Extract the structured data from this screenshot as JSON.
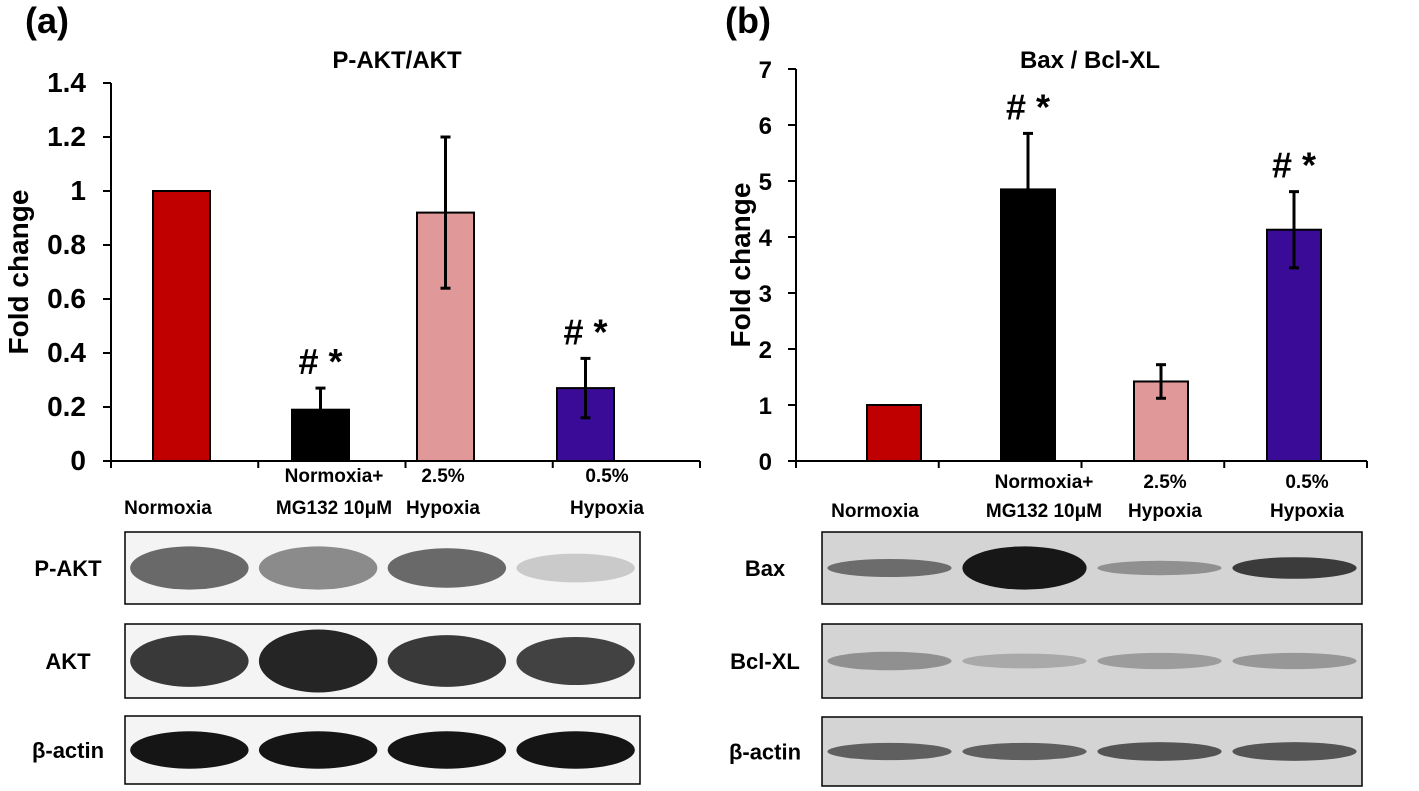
{
  "chart_data": [
    {
      "type": "bar",
      "panel_label": "(a)",
      "title": "P-AKT/AKT",
      "ylabel": "Fold change",
      "xlabel": "",
      "ylim": [
        0,
        1.4
      ],
      "yticks": [
        0,
        0.2,
        0.4,
        0.6,
        0.8,
        1,
        1.2,
        1.4
      ],
      "ytick_labels": [
        "0",
        "0.2",
        "0.4",
        "0.6",
        "0.8",
        "1",
        "1.2",
        "1.4"
      ],
      "categories": [
        "Normoxia",
        "Normoxia+ MG132 10μM",
        "2.5% Hypoxia",
        "0.5% Hypoxia"
      ],
      "category_lines": [
        [
          "Normoxia"
        ],
        [
          "Normoxia+",
          "MG132 10μM"
        ],
        [
          "2.5%",
          "Hypoxia"
        ],
        [
          "0.5%",
          "Hypoxia"
        ]
      ],
      "values": [
        1.0,
        0.19,
        0.92,
        0.27
      ],
      "errors": [
        0,
        0.08,
        0.28,
        0.11
      ],
      "colors": [
        "#c00000",
        "#000000",
        "#e09898",
        "#3a0b96"
      ],
      "annotations": [
        "",
        "# *",
        "",
        "# *"
      ],
      "grid": false,
      "blots": [
        {
          "label": "P-AKT",
          "bands": [
            {
              "darkness": 0.62,
              "thick": 0.6
            },
            {
              "darkness": 0.48,
              "thick": 0.6
            },
            {
              "darkness": 0.62,
              "thick": 0.55
            },
            {
              "darkness": 0.22,
              "thick": 0.4
            }
          ]
        },
        {
          "label": "AKT",
          "bands": [
            {
              "darkness": 0.82,
              "thick": 0.7
            },
            {
              "darkness": 0.9,
              "thick": 0.85
            },
            {
              "darkness": 0.82,
              "thick": 0.7
            },
            {
              "darkness": 0.78,
              "thick": 0.65
            }
          ]
        },
        {
          "label": "β-actin",
          "bands": [
            {
              "darkness": 0.97,
              "thick": 0.55
            },
            {
              "darkness": 0.97,
              "thick": 0.55
            },
            {
              "darkness": 0.97,
              "thick": 0.55
            },
            {
              "darkness": 0.97,
              "thick": 0.55
            }
          ]
        }
      ]
    },
    {
      "type": "bar",
      "panel_label": "(b)",
      "title": "Bax / Bcl-XL",
      "ylabel": "Fold change",
      "xlabel": "",
      "ylim": [
        0,
        7
      ],
      "yticks": [
        0,
        1,
        2,
        3,
        4,
        5,
        6,
        7
      ],
      "ytick_labels": [
        "0",
        "1",
        "2",
        "3",
        "4",
        "5",
        "6",
        "7"
      ],
      "categories": [
        "Normoxia",
        "Normoxia+ MG132 10μM",
        "2.5% Hypoxia",
        "0.5% Hypoxia"
      ],
      "category_lines": [
        [
          "Normoxia"
        ],
        [
          "Normoxia+",
          "MG132 10μM"
        ],
        [
          "2.5%",
          "Hypoxia"
        ],
        [
          "0.5%",
          "Hypoxia"
        ]
      ],
      "values": [
        1.0,
        4.85,
        1.42,
        4.13
      ],
      "errors": [
        0,
        1.0,
        0.3,
        0.68
      ],
      "colors": [
        "#c00000",
        "#000000",
        "#e09898",
        "#3a0b96"
      ],
      "annotations": [
        "",
        "# *",
        "",
        "# *"
      ],
      "grid": false,
      "blots": [
        {
          "label": "Bax",
          "bands": [
            {
              "darkness": 0.6,
              "thick": 0.25
            },
            {
              "darkness": 0.95,
              "thick": 0.6
            },
            {
              "darkness": 0.45,
              "thick": 0.2
            },
            {
              "darkness": 0.8,
              "thick": 0.3
            }
          ]
        },
        {
          "label": "Bcl-XL",
          "bands": [
            {
              "darkness": 0.45,
              "thick": 0.25
            },
            {
              "darkness": 0.35,
              "thick": 0.2
            },
            {
              "darkness": 0.4,
              "thick": 0.22
            },
            {
              "darkness": 0.42,
              "thick": 0.22
            }
          ]
        },
        {
          "label": "β-actin",
          "bands": [
            {
              "darkness": 0.65,
              "thick": 0.25
            },
            {
              "darkness": 0.65,
              "thick": 0.25
            },
            {
              "darkness": 0.7,
              "thick": 0.27
            },
            {
              "darkness": 0.7,
              "thick": 0.27
            }
          ]
        }
      ]
    }
  ]
}
